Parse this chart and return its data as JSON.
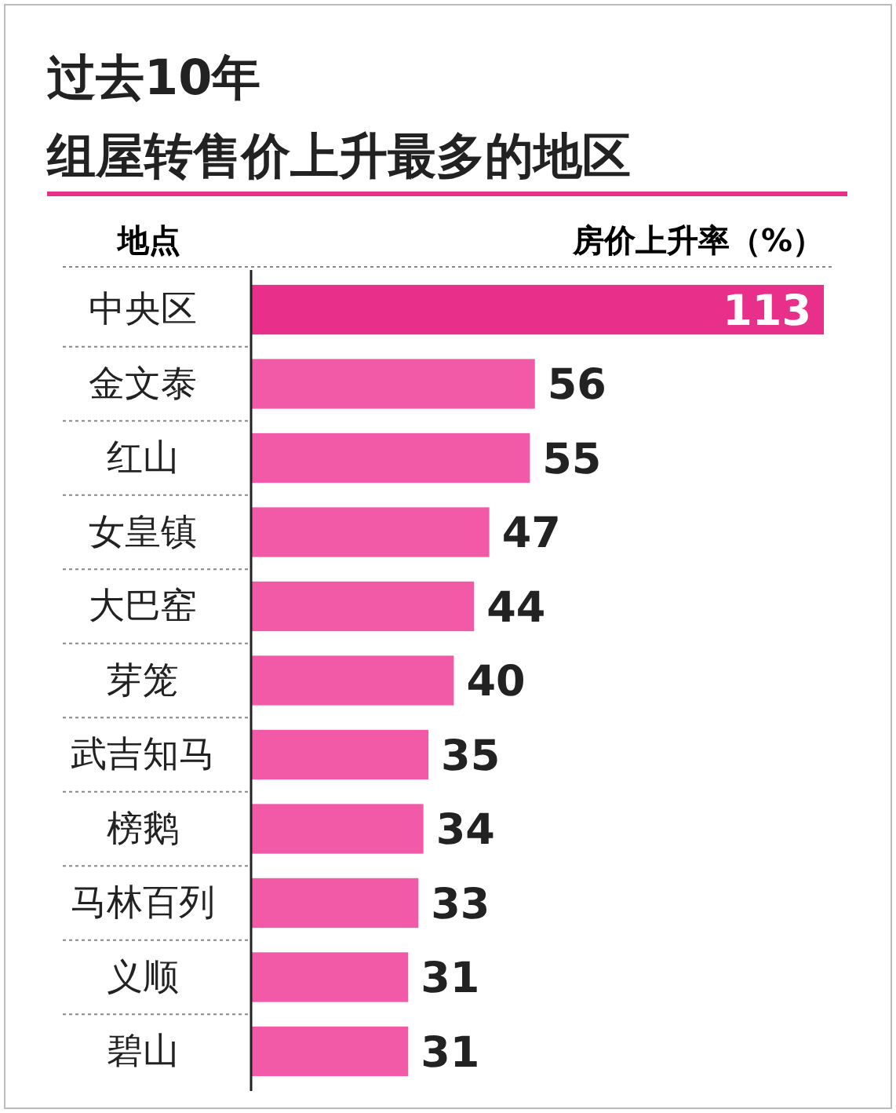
{
  "chart_data": {
    "type": "bar",
    "orientation": "horizontal",
    "title": "过去10年",
    "subtitle": "组屋转售价上升最多的地区",
    "ylabel": "地点",
    "xlabel": "房价上升率（%）",
    "categories": [
      "中央区",
      "金文泰",
      "红山",
      "女皇镇",
      "大巴窑",
      "芽笼",
      "武吉知马",
      "榜鹅",
      "马林百列",
      "义顺",
      "碧山"
    ],
    "values": [
      113,
      56,
      55,
      47,
      44,
      40,
      35,
      34,
      33,
      31,
      31
    ],
    "colors": [
      "#e8308a",
      "#f25aa8",
      "#f25aa8",
      "#f25aa8",
      "#f25aa8",
      "#f25aa8",
      "#f25aa8",
      "#f25aa8",
      "#f25aa8",
      "#f25aa8",
      "#f25aa8"
    ],
    "data_labels": true,
    "tick_labels": "y"
  }
}
